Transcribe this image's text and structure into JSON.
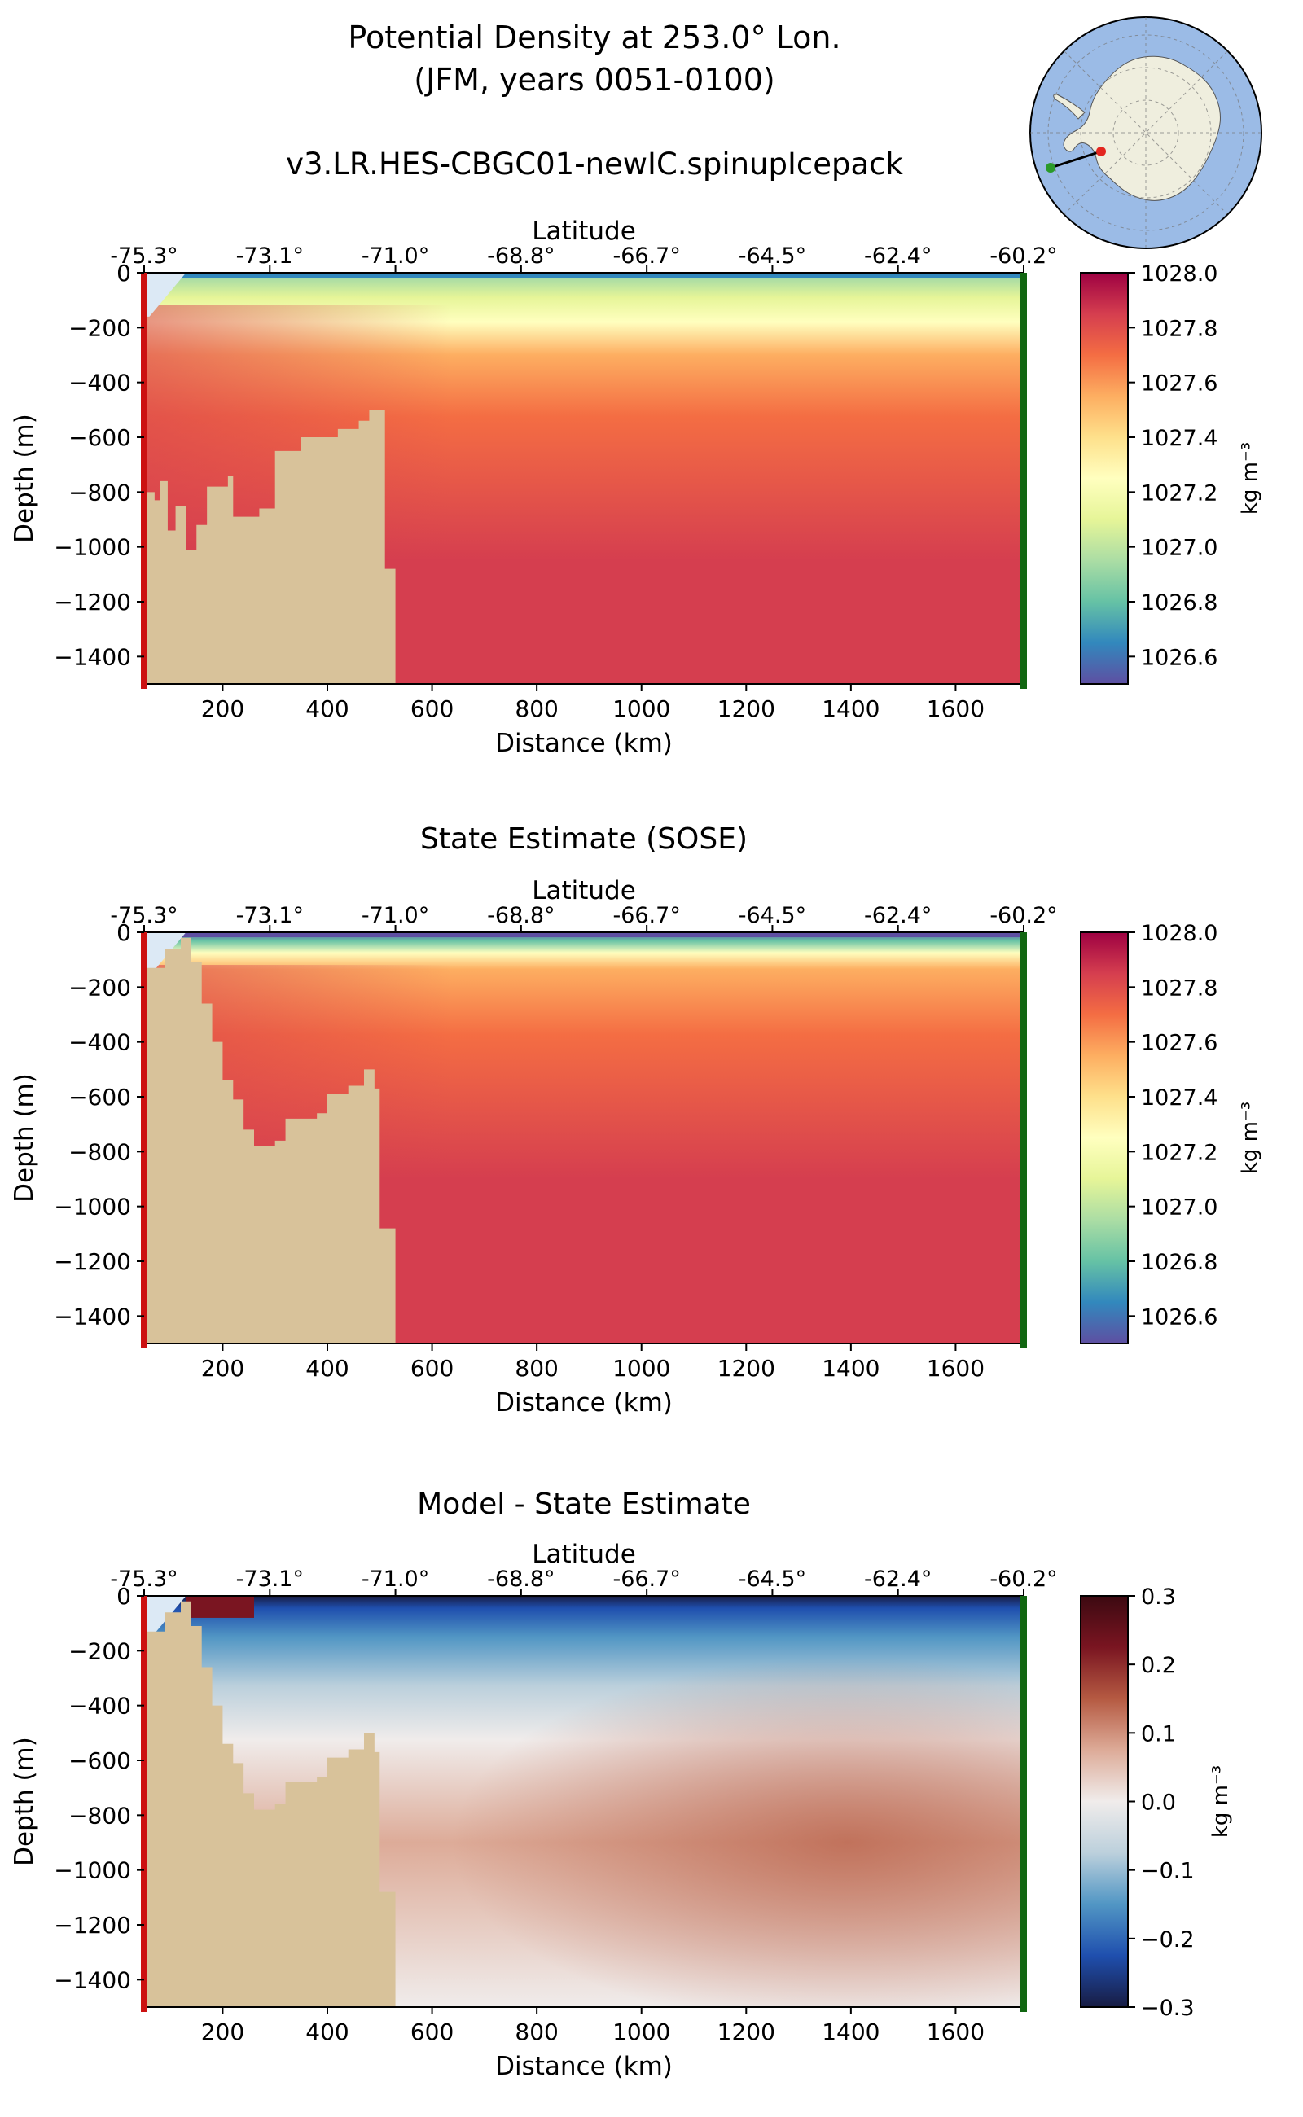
{
  "header": {
    "title_line1": "Potential Density at 253.0° Lon.",
    "title_line2": "(JFM, years 0051-0100)",
    "run_name": "v3.LR.HES-CBGC01-newIC.spinupIcepack"
  },
  "inset_map": {
    "projection": "south polar stereographic",
    "ocean_color": "#9bbbe6",
    "land_color": "#efeede",
    "transect_start_color": "#2a9a2a",
    "transect_end_color": "#e3261f"
  },
  "colors": {
    "bathymetry": "#d8c29a",
    "ice_shelf": "#dce9f5",
    "start_marker": "#cc1111",
    "end_marker": "#116611"
  },
  "chart_data": [
    {
      "type": "heatmap",
      "panel_title": "",
      "xlabel": "Distance (km)",
      "ylabel": "Depth (m)",
      "top_axis_label": "Latitude",
      "top_tick_labels": [
        "-75.3°",
        "-73.1°",
        "-71.0°",
        "-68.8°",
        "-66.7°",
        "-64.5°",
        "-62.4°",
        "-60.2°"
      ],
      "top_tick_positions_km": [
        50,
        290,
        530,
        770,
        1010,
        1250,
        1490,
        1730
      ],
      "xlim": [
        50,
        1730
      ],
      "ylim": [
        -1500,
        0
      ],
      "xticks": [
        200,
        400,
        600,
        800,
        1000,
        1200,
        1400,
        1600
      ],
      "yticks": [
        0,
        -200,
        -400,
        -600,
        -800,
        -1000,
        -1200,
        -1400
      ],
      "colorbar": {
        "cmap": "Spectral_r",
        "range": [
          1026.5,
          1028.0
        ],
        "ticks": [
          1028.0,
          1027.8,
          1027.6,
          1027.4,
          1027.2,
          1027.0,
          1026.8,
          1026.6
        ],
        "tick_labels": [
          "1028.0",
          "1027.8",
          "1027.6",
          "1027.4",
          "1027.2",
          "1027.0",
          "1026.8",
          "1026.6"
        ],
        "label": "kg m⁻³"
      },
      "bathymetry_depth_m": [
        [
          50,
          -800
        ],
        [
          70,
          -830
        ],
        [
          80,
          -760
        ],
        [
          95,
          -940
        ],
        [
          110,
          -850
        ],
        [
          130,
          -1010
        ],
        [
          150,
          -920
        ],
        [
          170,
          -780
        ],
        [
          210,
          -740
        ],
        [
          220,
          -890
        ],
        [
          270,
          -860
        ],
        [
          300,
          -650
        ],
        [
          350,
          -600
        ],
        [
          420,
          -570
        ],
        [
          460,
          -540
        ],
        [
          480,
          -500
        ],
        [
          510,
          -1080
        ],
        [
          530,
          -1500
        ]
      ]
    },
    {
      "type": "heatmap",
      "panel_title": "State Estimate (SOSE)",
      "xlabel": "Distance (km)",
      "ylabel": "Depth (m)",
      "top_axis_label": "Latitude",
      "top_tick_labels": [
        "-75.3°",
        "-73.1°",
        "-71.0°",
        "-68.8°",
        "-66.7°",
        "-64.5°",
        "-62.4°",
        "-60.2°"
      ],
      "top_tick_positions_km": [
        50,
        290,
        530,
        770,
        1010,
        1250,
        1490,
        1730
      ],
      "xlim": [
        50,
        1730
      ],
      "ylim": [
        -1500,
        0
      ],
      "xticks": [
        200,
        400,
        600,
        800,
        1000,
        1200,
        1400,
        1600
      ],
      "yticks": [
        0,
        -200,
        -400,
        -600,
        -800,
        -1000,
        -1200,
        -1400
      ],
      "colorbar": {
        "cmap": "Spectral_r",
        "range": [
          1026.5,
          1028.0
        ],
        "ticks": [
          1028.0,
          1027.8,
          1027.6,
          1027.4,
          1027.2,
          1027.0,
          1026.8,
          1026.6
        ],
        "tick_labels": [
          "1028.0",
          "1027.8",
          "1027.6",
          "1027.4",
          "1027.2",
          "1027.0",
          "1026.8",
          "1026.6"
        ],
        "label": "kg m⁻³"
      },
      "bathymetry_depth_m": [
        [
          50,
          -130
        ],
        [
          90,
          -60
        ],
        [
          120,
          -20
        ],
        [
          140,
          -110
        ],
        [
          160,
          -260
        ],
        [
          180,
          -400
        ],
        [
          200,
          -540
        ],
        [
          220,
          -610
        ],
        [
          240,
          -720
        ],
        [
          260,
          -780
        ],
        [
          300,
          -760
        ],
        [
          320,
          -680
        ],
        [
          380,
          -660
        ],
        [
          400,
          -590
        ],
        [
          440,
          -560
        ],
        [
          470,
          -500
        ],
        [
          490,
          -570
        ],
        [
          500,
          -1080
        ],
        [
          530,
          -1500
        ]
      ]
    },
    {
      "type": "heatmap",
      "panel_title": "Model - State Estimate",
      "xlabel": "Distance (km)",
      "ylabel": "Depth (m)",
      "top_axis_label": "Latitude",
      "top_tick_labels": [
        "-75.3°",
        "-73.1°",
        "-71.0°",
        "-68.8°",
        "-66.7°",
        "-64.5°",
        "-62.4°",
        "-60.2°"
      ],
      "top_tick_positions_km": [
        50,
        290,
        530,
        770,
        1010,
        1250,
        1490,
        1730
      ],
      "xlim": [
        50,
        1730
      ],
      "ylim": [
        -1500,
        0
      ],
      "xticks": [
        200,
        400,
        600,
        800,
        1000,
        1200,
        1400,
        1600
      ],
      "yticks": [
        0,
        -200,
        -400,
        -600,
        -800,
        -1000,
        -1200,
        -1400
      ],
      "colorbar": {
        "cmap": "balance",
        "range": [
          -0.3,
          0.3
        ],
        "ticks": [
          0.3,
          0.2,
          0.1,
          0.0,
          -0.1,
          -0.2,
          -0.3
        ],
        "tick_labels": [
          "0.3",
          "0.2",
          "0.1",
          "0.0",
          "−0.1",
          "−0.2",
          "−0.3"
        ],
        "label": "kg m⁻³"
      },
      "bathymetry_depth_m": [
        [
          50,
          -130
        ],
        [
          90,
          -60
        ],
        [
          120,
          -20
        ],
        [
          140,
          -110
        ],
        [
          160,
          -260
        ],
        [
          180,
          -400
        ],
        [
          200,
          -540
        ],
        [
          220,
          -610
        ],
        [
          240,
          -720
        ],
        [
          260,
          -780
        ],
        [
          300,
          -760
        ],
        [
          320,
          -680
        ],
        [
          380,
          -660
        ],
        [
          400,
          -590
        ],
        [
          440,
          -560
        ],
        [
          470,
          -500
        ],
        [
          490,
          -570
        ],
        [
          500,
          -1080
        ],
        [
          530,
          -1500
        ]
      ]
    }
  ]
}
